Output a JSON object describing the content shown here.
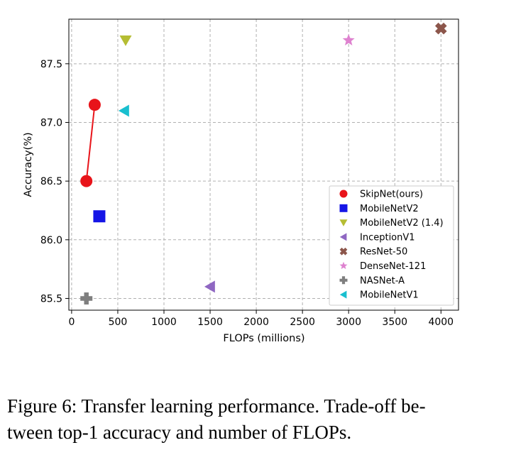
{
  "chart_data": {
    "type": "scatter",
    "xlabel": "FLOPs (millions)",
    "ylabel": "Accuracy(%)",
    "xlim": [
      -30,
      4190
    ],
    "ylim": [
      85.4,
      87.88
    ],
    "xticks": [
      0,
      500,
      1000,
      1500,
      2000,
      2500,
      3000,
      3500,
      4000
    ],
    "yticks": [
      85.5,
      86.0,
      86.5,
      87.0,
      87.5
    ],
    "ytick_labels": [
      "85.5",
      "86.0",
      "86.5",
      "87.0",
      "87.5"
    ],
    "grid": true,
    "legend_position": "lower-right",
    "series": [
      {
        "name": "SkipNet(ours)",
        "marker": "circle",
        "color": "#e8141a",
        "connected": true,
        "points": [
          {
            "x": 160,
            "y": 86.5
          },
          {
            "x": 250,
            "y": 87.15
          }
        ]
      },
      {
        "name": "MobileNetV2",
        "marker": "square",
        "color": "#1515e6",
        "points": [
          {
            "x": 300,
            "y": 86.2
          }
        ]
      },
      {
        "name": "MobileNetV2 (1.4)",
        "marker": "triangle-down",
        "color": "#b5bd33",
        "points": [
          {
            "x": 585,
            "y": 87.7
          }
        ]
      },
      {
        "name": "InceptionV1",
        "marker": "triangle-left",
        "color": "#8f67c2",
        "points": [
          {
            "x": 1500,
            "y": 85.6
          }
        ]
      },
      {
        "name": "ResNet-50",
        "marker": "x-thick",
        "color": "#8c564b",
        "points": [
          {
            "x": 4000,
            "y": 87.8
          }
        ]
      },
      {
        "name": "DenseNet-121",
        "marker": "star",
        "color": "#de82cf",
        "points": [
          {
            "x": 3000,
            "y": 87.7
          }
        ]
      },
      {
        "name": "NASNet-A",
        "marker": "plus-thick",
        "color": "#7f7f7f",
        "points": [
          {
            "x": 160,
            "y": 85.5
          }
        ]
      },
      {
        "name": "MobileNetV1",
        "marker": "triangle-left",
        "color": "#19bfcf",
        "points": [
          {
            "x": 570,
            "y": 87.1
          }
        ]
      }
    ]
  },
  "caption": {
    "line1": "Figure 6: Transfer learning performance.  Trade-off be-",
    "line2": "tween top-1 accuracy and number of FLOPs."
  }
}
